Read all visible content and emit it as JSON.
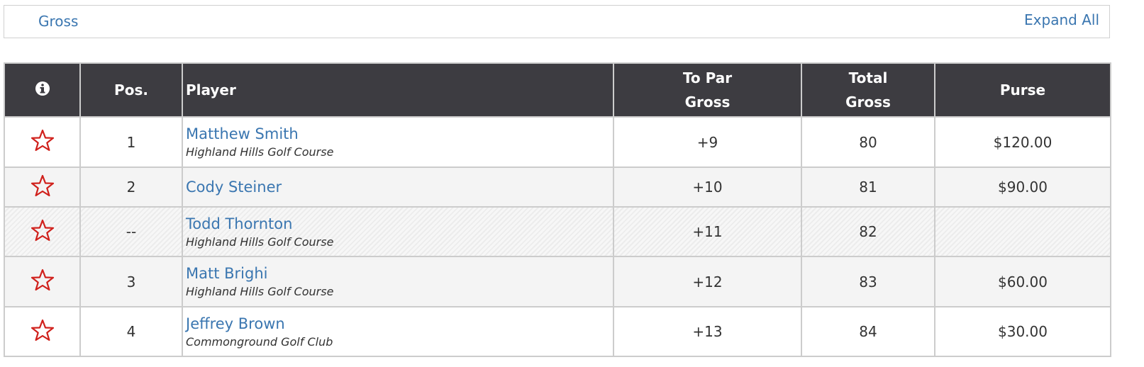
{
  "header": {
    "filter": "Gross",
    "expand": "Expand All"
  },
  "table": {
    "columns": {
      "pos": "Pos.",
      "player": "Player",
      "to_par": "To Par Gross",
      "total": "Total Gross",
      "purse": "Purse"
    },
    "rows": [
      {
        "pos": "1",
        "player": "Matthew Smith",
        "course": "Highland Hills Golf Course",
        "to_par": "+9",
        "total": "80",
        "purse": "$120.00"
      },
      {
        "pos": "2",
        "player": "Cody Steiner",
        "to_par": "+10",
        "total": "81",
        "purse": "$90.00"
      },
      {
        "pos": "--",
        "player": "Todd Thornton",
        "course": "Highland Hills Golf Course",
        "to_par": "+11",
        "total": "82"
      },
      {
        "pos": "3",
        "player": "Matt Brighi",
        "course": "Highland Hills Golf Course",
        "to_par": "+12",
        "total": "83",
        "purse": "$60.00"
      },
      {
        "pos": "4",
        "player": "Jeffrey Brown",
        "course": "Commonground Golf Club",
        "to_par": "+13",
        "total": "84",
        "purse": "$30.00"
      }
    ]
  }
}
